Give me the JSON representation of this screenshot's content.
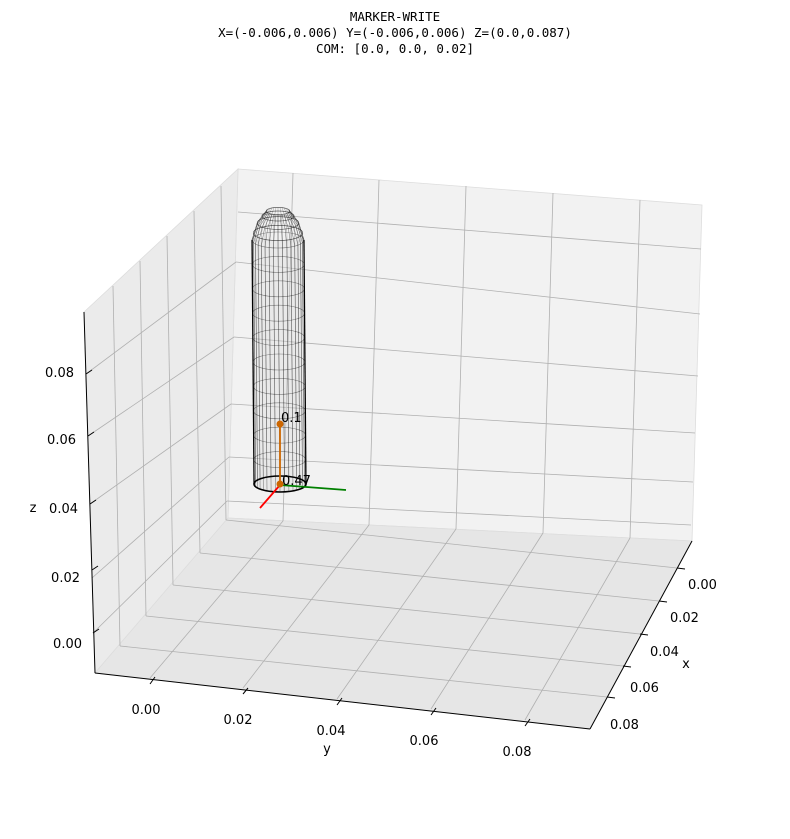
{
  "chart_data": {
    "type": "3d-wireframe",
    "title_lines": [
      "MARKER-WRITE",
      "X=(-0.006,0.006) Y=(-0.006,0.006) Z=(0.0,0.087)",
      "COM: [0.0, 0.0, 0.02]"
    ],
    "xlabel": "x",
    "ylabel": "y",
    "zlabel": "z",
    "x_ticks": [
      "0.00",
      "0.02",
      "0.04",
      "0.06",
      "0.08"
    ],
    "y_ticks": [
      "0.00",
      "0.02",
      "0.04",
      "0.06",
      "0.08"
    ],
    "z_ticks": [
      "0.00",
      "0.02",
      "0.04",
      "0.06",
      "0.08"
    ],
    "xlim": [
      -0.006,
      0.087
    ],
    "ylim": [
      -0.006,
      0.087
    ],
    "zlim": [
      0.0,
      0.087
    ],
    "mesh": {
      "shape": "capsule-like marker",
      "x_range": [
        -0.006,
        0.006
      ],
      "y_range": [
        -0.006,
        0.006
      ],
      "z_range": [
        0.0,
        0.087
      ],
      "color": "#000000"
    },
    "com": [
      0.0,
      0.0,
      0.02
    ],
    "points": [
      {
        "label": "0.1",
        "xyz": [
          0.0,
          0.0,
          0.02
        ],
        "color": "#cc6600"
      },
      {
        "label": "0.47",
        "xyz": [
          0.0,
          0.0,
          0.0
        ],
        "color": "#cc6600"
      }
    ],
    "frame_axes": [
      {
        "name": "x",
        "color": "#ff0000"
      },
      {
        "name": "y",
        "color": "#008000"
      },
      {
        "name": "z",
        "color": "#cc6600"
      }
    ],
    "grid": true,
    "pane_color": "#f2f2f2"
  }
}
